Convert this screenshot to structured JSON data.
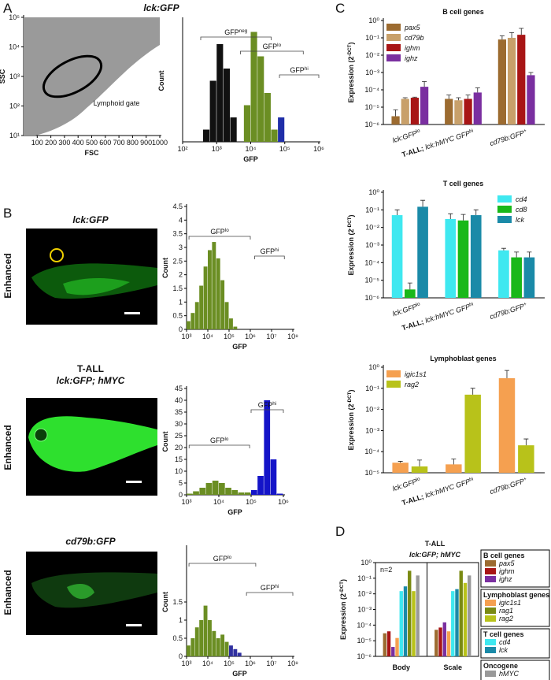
{
  "figure": {
    "panel_labels": [
      "A",
      "B",
      "C",
      "D"
    ],
    "title_a": "lck:GFP",
    "photos": [
      {
        "title": "lck:GFP",
        "label": "Enhanced"
      },
      {
        "title": "T-ALL",
        "subtitle": "lck:GFP; hMYC",
        "label": "Enhanced"
      },
      {
        "title": "cd79b:GFP",
        "label": "Enhanced"
      }
    ]
  },
  "chart_data": [
    {
      "type": "scatter",
      "xlabel": "FSC",
      "ylabel": "SSC",
      "xlim": [
        0,
        1000
      ],
      "xticks": [
        100,
        200,
        300,
        400,
        500,
        600,
        700,
        800,
        900,
        1000
      ],
      "log_y": true,
      "ylim": [
        10,
        100000
      ],
      "yticks": [
        {
          "value": 10,
          "label": "10¹"
        },
        {
          "value": 100,
          "label": "10²"
        },
        {
          "value": 1000,
          "label": "10³"
        },
        {
          "value": 10000,
          "label": "10⁴"
        },
        {
          "value": 100000,
          "label": "10⁵"
        }
      ],
      "annotation": "Lymphoid gate"
    },
    {
      "type": "histogram",
      "xlabel": "GFP",
      "ylabel": "Count",
      "log_x": true,
      "xlim": [
        100,
        1000000
      ],
      "xticks": [
        {
          "value": 100,
          "label": "10²"
        },
        {
          "value": 1000,
          "label": "10³"
        },
        {
          "value": 10000,
          "label": "10⁴"
        },
        {
          "value": 100000,
          "label": "10⁵"
        },
        {
          "value": 1000000,
          "label": "10⁶"
        }
      ],
      "ylim": [
        0,
        10
      ],
      "bins": [
        100,
        158,
        251,
        398,
        631,
        1000,
        1585,
        2512,
        3981,
        6310,
        10000,
        15849,
        25119,
        39811,
        63096,
        100000,
        158489,
        251189,
        398107,
        630957,
        1000000
      ],
      "values": [
        0,
        0,
        0,
        1,
        5,
        8,
        6,
        2,
        0,
        3,
        9,
        7,
        4,
        1,
        2,
        0,
        0,
        0,
        0,
        0
      ],
      "bar_colors": [
        "#111111",
        "#111111",
        "#111111",
        "#111111",
        "#111111",
        "#111111",
        "#111111",
        "#111111",
        "#111111",
        "#6b8e23",
        "#6b8e23",
        "#6b8e23",
        "#6b8e23",
        "#6b8e23",
        "#1f2ea8",
        "#1f2ea8",
        "#1f2ea8",
        "#1f2ea8",
        "#1f2ea8",
        "#1f2ea8"
      ],
      "gates": [
        {
          "label": [
            {
              "text": "GFP"
            },
            {
              "text": "neg",
              "sup": true
            }
          ],
          "range": [
            340,
            40000
          ]
        },
        {
          "label": [
            {
              "text": "GFP"
            },
            {
              "text": "lo",
              "sup": true
            }
          ],
          "range": [
            5000,
            350000
          ]
        },
        {
          "label": [
            {
              "text": "GFP"
            },
            {
              "text": "hi",
              "sup": true
            }
          ],
          "range": [
            70000,
            1000000
          ]
        }
      ]
    },
    {
      "type": "histogram",
      "xlabel": "GFP",
      "ylabel": "Count",
      "log_x": true,
      "xlim": [
        1000,
        100000000
      ],
      "xticks": [
        {
          "value": 1000,
          "label": "10³"
        },
        {
          "value": 10000,
          "label": "10⁴"
        },
        {
          "value": 100000,
          "label": "10⁵"
        },
        {
          "value": 1000000,
          "label": "10⁶"
        },
        {
          "value": 10000000,
          "label": "10⁷"
        },
        {
          "value": 100000000,
          "label": "10⁸"
        }
      ],
      "ylim": [
        0,
        4.5
      ],
      "yticks": [
        0,
        0.5,
        1,
        1.5,
        2,
        2.5,
        3,
        3.5,
        4,
        4.5
      ],
      "bins": [
        1000,
        1585,
        2512,
        3981,
        6310,
        10000,
        15849,
        25119,
        39811,
        63096,
        100000,
        158489,
        251189,
        398107,
        630957,
        1000000
      ],
      "values": [
        0.3,
        0.6,
        1.0,
        1.6,
        2.3,
        2.9,
        3.2,
        2.6,
        1.8,
        1.0,
        0.4,
        0.1,
        0,
        0,
        0
      ],
      "bar_colors": [
        "#6b8e23",
        "#6b8e23",
        "#6b8e23",
        "#6b8e23",
        "#6b8e23",
        "#6b8e23",
        "#6b8e23",
        "#6b8e23",
        "#6b8e23",
        "#6b8e23",
        "#6b8e23",
        "#6b8e23",
        "#6b8e23",
        "#6b8e23",
        "#6b8e23"
      ],
      "gates": [
        {
          "label": [
            {
              "text": "GFP"
            },
            {
              "text": "lo",
              "sup": true
            }
          ],
          "range": [
            1300,
            1000000
          ]
        },
        {
          "label": [
            {
              "text": "GFP"
            },
            {
              "text": "hi",
              "sup": true
            }
          ],
          "range": [
            1600000,
            40000000
          ]
        }
      ]
    },
    {
      "type": "histogram",
      "xlabel": "GFP",
      "ylabel": "Count",
      "log_x": true,
      "xlim": [
        1000,
        1000000
      ],
      "xticks": [
        {
          "value": 1000,
          "label": "10³"
        },
        {
          "value": 10000,
          "label": "10⁴"
        },
        {
          "value": 100000,
          "label": "10⁵"
        },
        {
          "value": 1000000,
          "label": "10⁶"
        }
      ],
      "ylim": [
        0,
        45
      ],
      "yticks": [
        0,
        5,
        10,
        15,
        20,
        25,
        30,
        35,
        40,
        45
      ],
      "bins": [
        1000,
        1585,
        2512,
        3981,
        6310,
        10000,
        15849,
        25119,
        39811,
        63096,
        100000,
        158489,
        251189,
        398107,
        630957,
        1000000
      ],
      "values": [
        0.5,
        1.5,
        3,
        5,
        6,
        5,
        3,
        2,
        1,
        1,
        2,
        8,
        40,
        15,
        0.5
      ],
      "bar_colors": [
        "#6b8e23",
        "#6b8e23",
        "#6b8e23",
        "#6b8e23",
        "#6b8e23",
        "#6b8e23",
        "#6b8e23",
        "#6b8e23",
        "#6b8e23",
        "#6b8e23",
        "#1414c8",
        "#1414c8",
        "#1414c8",
        "#1414c8",
        "#1414c8"
      ],
      "gates": [
        {
          "label": [
            {
              "text": "GFP"
            },
            {
              "text": "lo",
              "sup": true
            }
          ],
          "range": [
            1200,
            90000
          ]
        },
        {
          "label": [
            {
              "text": "GFP"
            },
            {
              "text": "hi",
              "sup": true
            }
          ],
          "range": [
            100000,
            1000000
          ]
        }
      ]
    },
    {
      "type": "histogram",
      "xlabel": "GFP",
      "ylabel": "Count",
      "log_x": true,
      "xlim": [
        1000,
        100000000
      ],
      "xticks": [
        {
          "value": 1000,
          "label": "10³"
        },
        {
          "value": 10000,
          "label": "10⁴"
        },
        {
          "value": 100000,
          "label": "10⁵"
        },
        {
          "value": 1000000,
          "label": "10⁶"
        },
        {
          "value": 10000000,
          "label": "10⁷"
        },
        {
          "value": 100000000,
          "label": "10⁸"
        }
      ],
      "ylim": [
        0,
        3
      ],
      "yticks": [
        0,
        0.5,
        1,
        1.5
      ],
      "bins": [
        1000,
        1585,
        2512,
        3981,
        6310,
        10000,
        15849,
        25119,
        39811,
        63096,
        100000,
        158489,
        251189,
        398107,
        630957,
        1000000
      ],
      "values": [
        0.3,
        0.5,
        0.8,
        1.0,
        1.4,
        1.0,
        0.7,
        0.5,
        0.6,
        0.4,
        0.3,
        0.2,
        0.1,
        0,
        0
      ],
      "bar_colors": [
        "#6b8e23",
        "#6b8e23",
        "#6b8e23",
        "#6b8e23",
        "#6b8e23",
        "#6b8e23",
        "#6b8e23",
        "#6b8e23",
        "#6b8e23",
        "#6b8e23",
        "#3030a0",
        "#3030a0",
        "#3030a0",
        "#3030a0",
        "#3030a0"
      ],
      "gates": [
        {
          "label": [
            {
              "text": "GFP"
            },
            {
              "text": "lo",
              "sup": true
            }
          ],
          "range": [
            1300,
            1800000
          ]
        },
        {
          "label": [
            {
              "text": "GFP"
            },
            {
              "text": "hi",
              "sup": true
            }
          ],
          "range": [
            660000,
            100000000
          ]
        }
      ]
    },
    {
      "type": "bar",
      "title": "B cell genes",
      "ylabel": [
        {
          "text": "Expression (2"
        },
        {
          "text": "-DCT",
          "sup": true
        },
        {
          "text": ")"
        }
      ],
      "log_y": true,
      "ylim": [
        1e-06,
        1
      ],
      "yticks": [
        {
          "value": 1e-06,
          "label": "10⁻⁶"
        },
        {
          "value": 1e-05,
          "label": "10⁻⁵"
        },
        {
          "value": 0.0001,
          "label": "10⁻⁴"
        },
        {
          "value": 0.001,
          "label": "10⁻³"
        },
        {
          "value": 0.01,
          "label": "10⁻²"
        },
        {
          "value": 0.1,
          "label": "10⁻¹"
        },
        {
          "value": 1,
          "label": "10⁰"
        }
      ],
      "legend": "upper left",
      "categories": [
        [
          {
            "text": "lck:GFP",
            "italic": true
          },
          {
            "text": "lo",
            "sup": true
          }
        ],
        [
          {
            "text": "T-ALL; ",
            "bold": true
          },
          {
            "text": "lck:hMYC GFP",
            "italic": true
          },
          {
            "text": "hi",
            "sup": true
          }
        ],
        [
          {
            "text": "cd79b:GFP",
            "italic": true
          },
          {
            "text": "+",
            "sup": true
          }
        ]
      ],
      "series": [
        {
          "name": "pax5",
          "color": "#9c6b30",
          "values": [
            3e-06,
            3e-05,
            0.08
          ],
          "errors": [
            4e-06,
            2e-05,
            0.05
          ]
        },
        {
          "name": "cd79b",
          "color": "#c8a06a",
          "values": [
            3e-05,
            2.5e-05,
            0.1
          ],
          "errors": [
            5e-06,
            1e-05,
            0.1
          ]
        },
        {
          "name": "ighm",
          "color": "#a81515",
          "values": [
            3.5e-05,
            3e-05,
            0.15
          ],
          "errors": [
            3e-06,
            2e-05,
            0.2
          ]
        },
        {
          "name": "ighz",
          "color": "#7a2fa0",
          "values": [
            0.00015,
            7e-05,
            0.0007
          ],
          "errors": [
            0.00015,
            6e-05,
            0.0003
          ]
        }
      ]
    },
    {
      "type": "bar",
      "title": "T cell genes",
      "ylabel": [
        {
          "text": "Expression (2"
        },
        {
          "text": "-DCT",
          "sup": true
        },
        {
          "text": ")"
        }
      ],
      "log_y": true,
      "ylim": [
        1e-06,
        1
      ],
      "yticks": [
        {
          "value": 1e-06,
          "label": "10⁻⁶"
        },
        {
          "value": 1e-05,
          "label": "10⁻⁵"
        },
        {
          "value": 0.0001,
          "label": "10⁻⁴"
        },
        {
          "value": 0.001,
          "label": "10⁻³"
        },
        {
          "value": 0.01,
          "label": "10⁻²"
        },
        {
          "value": 0.1,
          "label": "10⁻¹"
        },
        {
          "value": 1,
          "label": "10⁰"
        }
      ],
      "legend": "upper right",
      "categories": [
        [
          {
            "text": "lck:GFP",
            "italic": true
          },
          {
            "text": "lo",
            "sup": true
          }
        ],
        [
          {
            "text": "T-ALL; ",
            "bold": true
          },
          {
            "text": "lck:hMYC GFP",
            "italic": true
          },
          {
            "text": "hi",
            "sup": true
          }
        ],
        [
          {
            "text": "cd79b:GFP",
            "italic": true
          },
          {
            "text": "+",
            "sup": true
          }
        ]
      ],
      "series": [
        {
          "name": "cd4",
          "color": "#3fe8f0",
          "values": [
            0.05,
            0.03,
            0.0005
          ],
          "errors": [
            0.05,
            0.03,
            0.00015
          ]
        },
        {
          "name": "cd8",
          "color": "#19b819",
          "values": [
            3e-06,
            0.025,
            0.0002
          ],
          "errors": [
            4e-06,
            0.03,
            0.0002
          ]
        },
        {
          "name": "lck",
          "color": "#1a8aa8",
          "values": [
            0.15,
            0.05,
            0.0002
          ],
          "errors": [
            0.2,
            0.05,
            0.0002
          ]
        }
      ]
    },
    {
      "type": "bar",
      "title": "Lymphoblast genes",
      "ylabel": [
        {
          "text": "Expression (2"
        },
        {
          "text": "-DCT",
          "sup": true
        },
        {
          "text": ")"
        }
      ],
      "log_y": true,
      "ylim": [
        1e-05,
        1
      ],
      "yticks": [
        {
          "value": 1e-05,
          "label": "10⁻⁵"
        },
        {
          "value": 0.0001,
          "label": "10⁻⁴"
        },
        {
          "value": 0.001,
          "label": "10⁻³"
        },
        {
          "value": 0.01,
          "label": "10⁻²"
        },
        {
          "value": 0.1,
          "label": "10⁻¹"
        },
        {
          "value": 1,
          "label": "10⁰"
        }
      ],
      "legend": "upper left",
      "categories": [
        [
          {
            "text": "lck:GFP",
            "italic": true
          },
          {
            "text": "lo",
            "sup": true
          }
        ],
        [
          {
            "text": "T-ALL; ",
            "bold": true
          },
          {
            "text": "lck:hMYC GFP",
            "italic": true
          },
          {
            "text": "hi",
            "sup": true
          }
        ],
        [
          {
            "text": "cd79b:GFP",
            "italic": true
          },
          {
            "text": "+",
            "sup": true
          }
        ]
      ],
      "series": [
        {
          "name": "igic1s1",
          "color": "#f5a050",
          "values": [
            3e-05,
            2.5e-05,
            0.3
          ],
          "errors": [
            5e-06,
            2e-05,
            0.4
          ]
        },
        {
          "name": "rag2",
          "color": "#b8c21a",
          "values": [
            2e-05,
            0.05,
            0.0002
          ],
          "errors": [
            2e-05,
            0.05,
            0.0002
          ]
        }
      ]
    },
    {
      "type": "bar",
      "title": "T-ALL",
      "subtitle": "lck:GFP; hMYC",
      "annotation": "n=2",
      "ylabel": [
        {
          "text": "Expression (2"
        },
        {
          "text": "-DCT",
          "sup": true
        },
        {
          "text": ")"
        }
      ],
      "log_y": true,
      "ylim": [
        1e-06,
        1
      ],
      "yticks": [
        {
          "value": 1e-06,
          "label": "10⁻⁶"
        },
        {
          "value": 1e-05,
          "label": "10⁻⁵"
        },
        {
          "value": 0.0001,
          "label": "10⁻⁴"
        },
        {
          "value": 0.001,
          "label": "10⁻³"
        },
        {
          "value": 0.01,
          "label": "10⁻²"
        },
        {
          "value": 0.1,
          "label": "10⁻¹"
        },
        {
          "value": 1,
          "label": "10⁰"
        }
      ],
      "legend": "outside right",
      "categories": [
        "Body",
        "Scale"
      ],
      "series": [
        {
          "name": "pax5",
          "group": "B cell genes",
          "color": "#9c6b30",
          "values": [
            3e-05,
            5e-05
          ]
        },
        {
          "name": "ighm",
          "group": "B cell genes",
          "color": "#a81515",
          "values": [
            4e-05,
            7e-05
          ]
        },
        {
          "name": "ighz",
          "group": "B cell genes",
          "color": "#7a2fa0",
          "values": [
            4e-06,
            0.00015
          ]
        },
        {
          "name": "igic1s1",
          "group": "Lymphoblast genes",
          "color": "#f5a050",
          "values": [
            1.5e-05,
            4e-05
          ]
        },
        {
          "name": "cd4",
          "group": "T cell genes",
          "color": "#3fe8f0",
          "values": [
            0.015,
            0.015
          ]
        },
        {
          "name": "lck",
          "group": "T cell genes",
          "color": "#1a8aa8",
          "values": [
            0.03,
            0.02
          ]
        },
        {
          "name": "rag1",
          "group": "Lymphoblast genes",
          "color": "#7a8a12",
          "values": [
            0.3,
            0.3
          ]
        },
        {
          "name": "rag2",
          "group": "Lymphoblast genes",
          "color": "#b8c21a",
          "values": [
            0.015,
            0.05
          ]
        },
        {
          "name": "hMYC",
          "group": "Oncogene",
          "color": "#999999",
          "values": [
            0.15,
            0.15
          ]
        }
      ]
    }
  ]
}
